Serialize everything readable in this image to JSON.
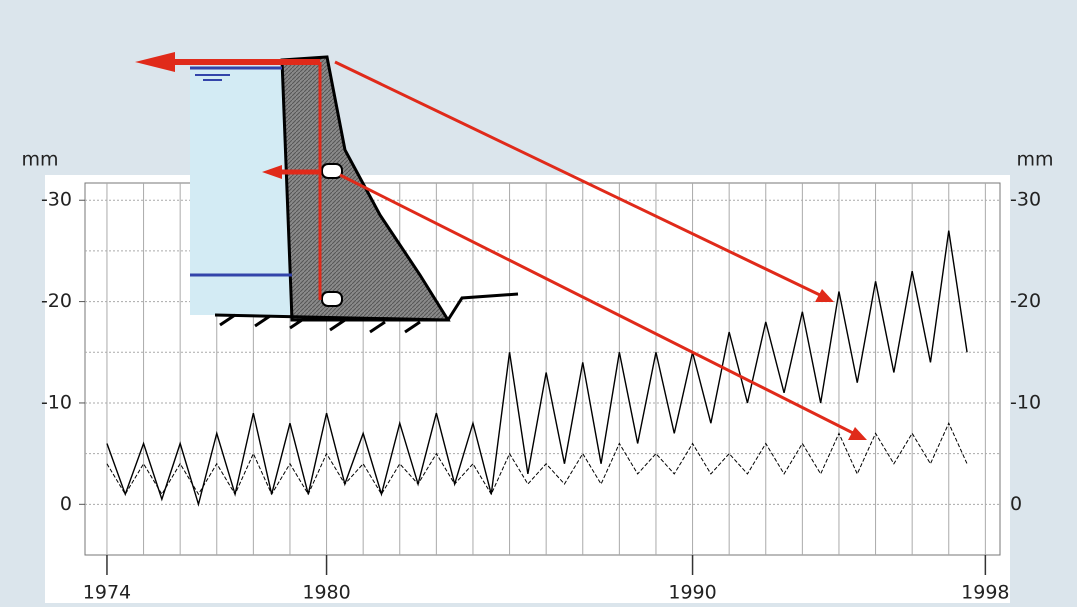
{
  "chart_data": {
    "type": "line",
    "ylabel": "mm",
    "y2label": "mm",
    "x": [
      1974,
      1974.5,
      1975,
      1975.5,
      1976,
      1976.5,
      1977,
      1977.5,
      1978,
      1978.5,
      1979,
      1979.5,
      1980,
      1980.5,
      1981,
      1981.5,
      1982,
      1982.5,
      1983,
      1983.5,
      1984,
      1984.5,
      1985,
      1985.5,
      1986,
      1986.5,
      1987,
      1987.5,
      1988,
      1988.5,
      1989,
      1989.5,
      1990,
      1990.5,
      1991,
      1991.5,
      1992,
      1992.5,
      1993,
      1993.5,
      1994,
      1994.5,
      1995,
      1995.5,
      1996,
      1996.5,
      1997,
      1997.5
    ],
    "series": [
      {
        "color": "#000000",
        "line_style": "solid",
        "values": [
          -6,
          -1,
          -6,
          -0.5,
          -6,
          0,
          -7,
          -1,
          -9,
          -1,
          -8,
          -1,
          -9,
          -2,
          -7,
          -1,
          -8,
          -2,
          -9,
          -2,
          -8,
          -1,
          -15,
          -3,
          -13,
          -4,
          -14,
          -4,
          -15,
          -6,
          -15,
          -7,
          -15,
          -8,
          -17,
          -10,
          -18,
          -11,
          -19,
          -10,
          -21,
          -12,
          -22,
          -13,
          -23,
          -14,
          -27,
          -15
        ]
      },
      {
        "color": "#000000",
        "line_style": "dashed",
        "values": [
          -4,
          -1,
          -4,
          -1,
          -4,
          -1,
          -4,
          -1,
          -5,
          -1,
          -4,
          -1,
          -5,
          -2,
          -4,
          -1,
          -4,
          -2,
          -5,
          -2,
          -4,
          -1,
          -5,
          -2,
          -4,
          -2,
          -5,
          -2,
          -6,
          -3,
          -5,
          -3,
          -6,
          -3,
          -5,
          -3,
          -6,
          -3,
          -6,
          -3,
          -7,
          -3,
          -7,
          -4,
          -7,
          -4,
          -8,
          -4
        ]
      }
    ],
    "xlim": [
      1973.4,
      1998.4
    ],
    "xticks": [
      1974,
      1980,
      1990,
      1998
    ],
    "xgrid": [
      1974,
      1975,
      1976,
      1977,
      1978,
      1979,
      1980,
      1981,
      1982,
      1983,
      1984,
      1985,
      1986,
      1987,
      1988,
      1989,
      1990,
      1991,
      1992,
      1993,
      1994,
      1995,
      1996,
      1997,
      1998
    ],
    "ylim": [
      5,
      -31.7
    ],
    "yticks": [
      -30,
      -20,
      -10,
      0
    ],
    "ygrid": [
      -30,
      -25,
      -20,
      -15,
      -10,
      -5,
      0
    ]
  }
}
